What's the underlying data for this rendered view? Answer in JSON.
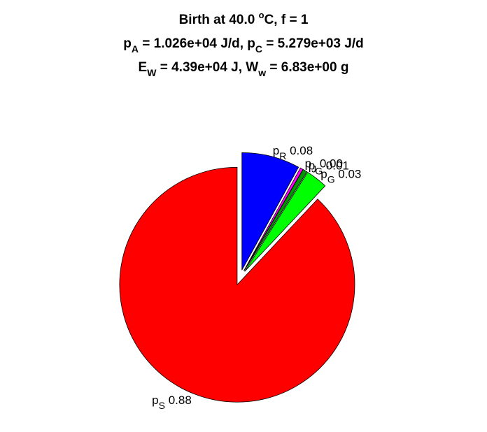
{
  "chart_data": {
    "type": "pie",
    "title": {
      "line1": {
        "text": "Birth at 40.0 ",
        "sup": "o",
        "tail": "C, f = 1"
      },
      "line2": [
        {
          "t": "p"
        },
        {
          "sub": "A"
        },
        {
          "t": " = 1.026e+04 J/d, p"
        },
        {
          "sub": "C"
        },
        {
          "t": " = 5.279e+03 J/d"
        }
      ],
      "line3": [
        {
          "t": "E"
        },
        {
          "sub": "W"
        },
        {
          "t": " = 4.39e+04 J, W"
        },
        {
          "sub": "w"
        },
        {
          "t": " = 6.83e+00 g"
        }
      ]
    },
    "slices": [
      {
        "name": "p",
        "sub": "R",
        "value_text": "0.08",
        "value": 0.08,
        "color": "#0000ff"
      },
      {
        "name": "p",
        "sub": "J",
        "value_text": "0.00",
        "value": 0.004,
        "color": "#ff00ff"
      },
      {
        "name": "p",
        "sub": "G",
        "value_text": "0.01",
        "value": 0.006,
        "color": "#009900"
      },
      {
        "name": "p",
        "sub": "G",
        "value_text": "0.03",
        "value": 0.03,
        "color": "#00ff00"
      },
      {
        "name": "p",
        "sub": "S",
        "value_text": "0.88",
        "value": 0.88,
        "color": "#ff0000"
      }
    ]
  }
}
